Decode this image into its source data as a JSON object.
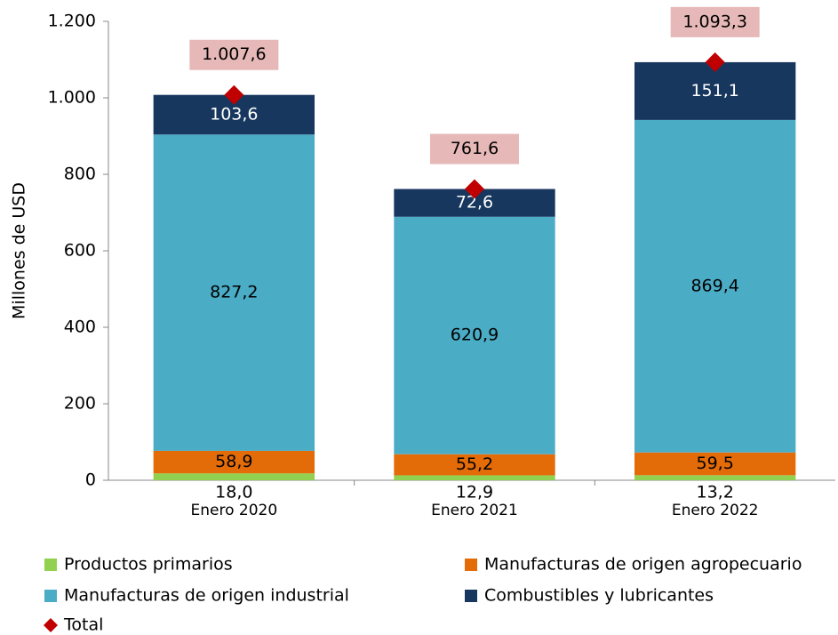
{
  "chart_data": {
    "type": "bar",
    "stacked": true,
    "ylabel": "Millones de  USD",
    "categories": [
      "Enero 2020",
      "Enero 2021",
      "Enero 2022"
    ],
    "ylim": [
      0,
      1200
    ],
    "yticks": [
      0,
      200,
      400,
      600,
      800,
      {
        "value": 1000,
        "label": "1.000"
      },
      {
        "value": 1200,
        "label": "1.200"
      }
    ],
    "series": [
      {
        "name": "Productos primarios",
        "color": "#92d050",
        "values": [
          18.0,
          12.9,
          13.2
        ],
        "value_labels": [
          "18,0",
          "12,9",
          "13,2"
        ]
      },
      {
        "name": "Manufacturas de origen agropecuario",
        "color": "#e36c09",
        "values": [
          58.9,
          55.2,
          59.5
        ],
        "value_labels": [
          "58,9",
          "55,2",
          "59,5"
        ]
      },
      {
        "name": "Manufacturas de origen industrial",
        "color": "#4bacc6",
        "values": [
          827.2,
          620.9,
          869.4
        ],
        "value_labels": [
          "827,2",
          "620,9",
          "869,4"
        ]
      },
      {
        "name": "Combustibles y lubricantes",
        "color": "#17375e",
        "values": [
          103.6,
          72.6,
          151.1
        ],
        "value_labels": [
          "103,6",
          "72,6",
          "151,1"
        ]
      },
      {
        "name": "Total",
        "type": "marker",
        "color": "#c00000",
        "values": [
          1007.6,
          761.6,
          1093.3
        ],
        "value_labels": [
          "1.007,6",
          "761,6",
          "1.093,3"
        ]
      }
    ]
  }
}
